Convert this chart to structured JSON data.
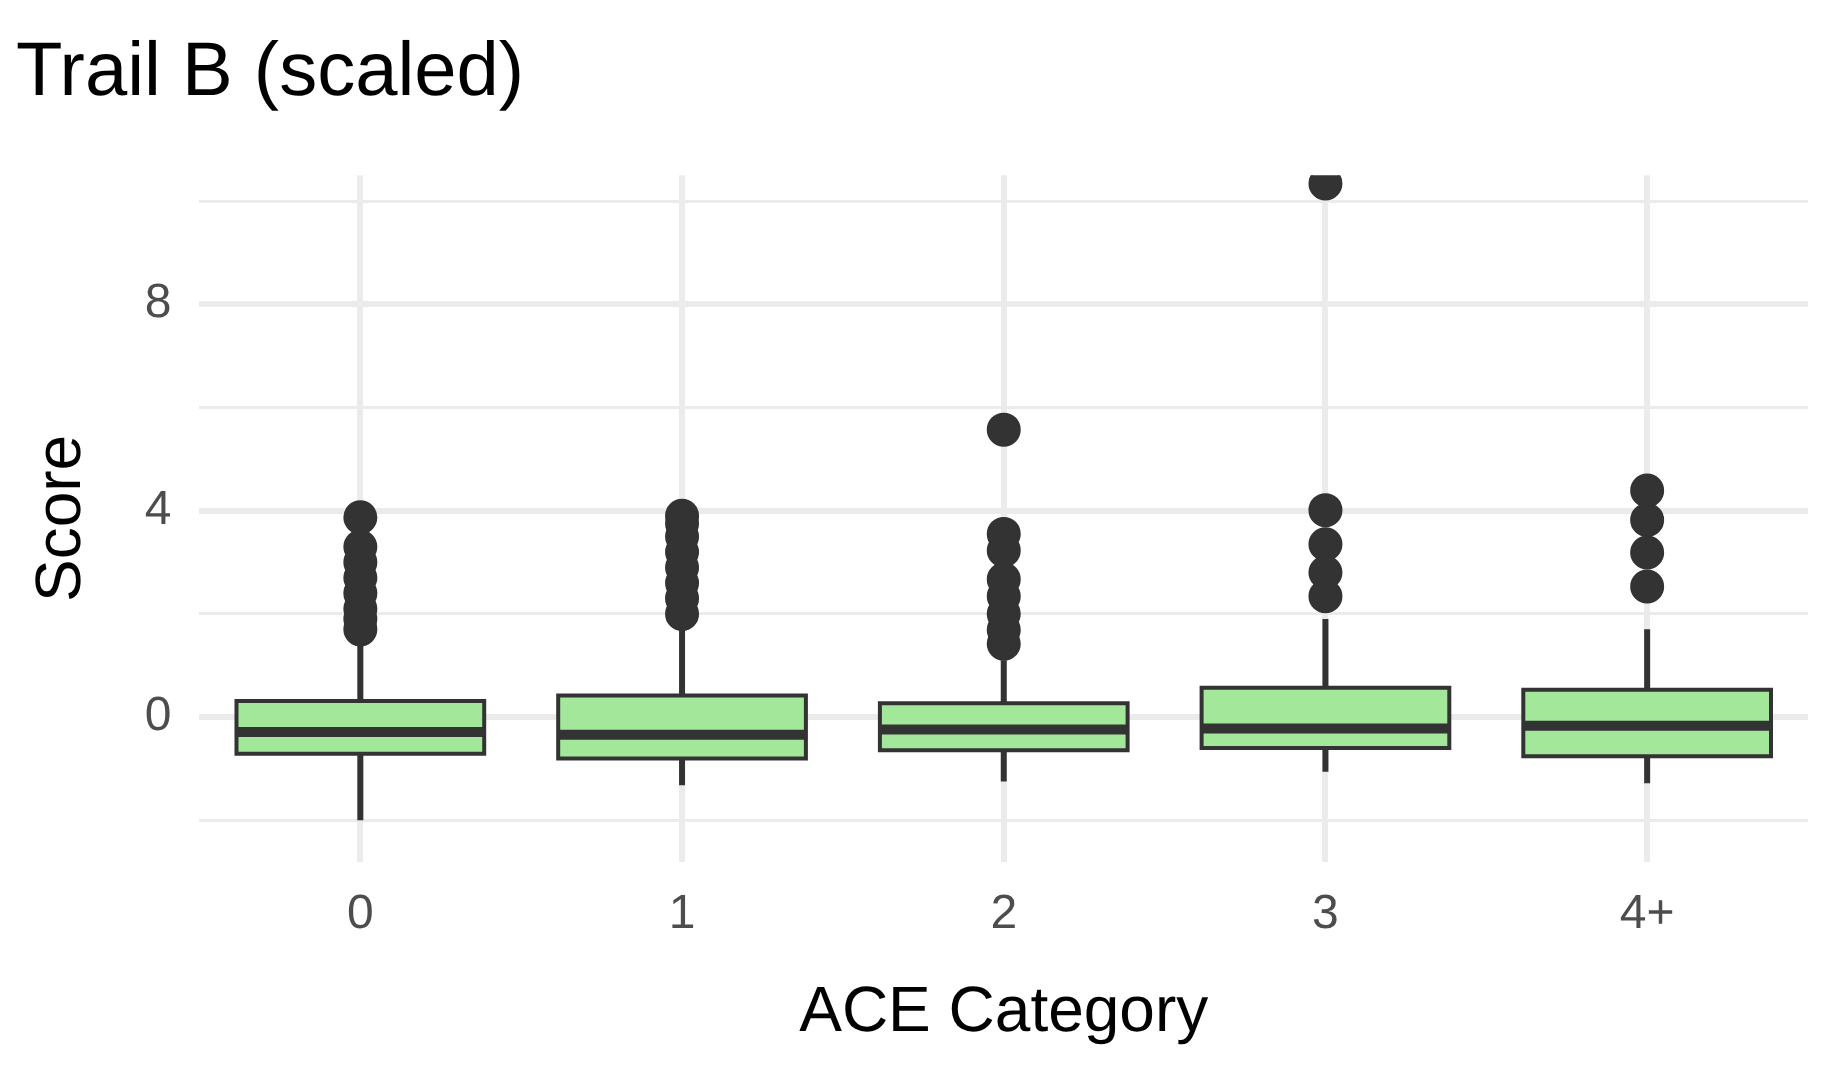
{
  "chart_data": {
    "type": "box",
    "title": "Trail B (scaled)",
    "xlabel": "ACE Category",
    "ylabel": "Score",
    "categories": [
      "0",
      "1",
      "2",
      "3",
      "4+"
    ],
    "series": [
      {
        "color": "#a3e89a",
        "boxes": [
          {
            "low": -2.0,
            "q1": -0.71,
            "median": -0.29,
            "q3": 0.31,
            "high": 1.5,
            "outliers": [
              1.7,
              1.9,
              2.1,
              2.4,
              2.7,
              3.0,
              3.3,
              3.87
            ]
          },
          {
            "low": -1.32,
            "q1": -0.8,
            "median": -0.34,
            "q3": 0.42,
            "high": 1.8,
            "outliers": [
              2.0,
              2.3,
              2.6,
              2.9,
              3.2,
              3.5,
              3.75,
              3.9
            ]
          },
          {
            "low": -1.25,
            "q1": -0.64,
            "median": -0.24,
            "q3": 0.27,
            "high": 1.1,
            "outliers": [
              1.42,
              1.69,
              2.0,
              2.34,
              2.67,
              3.23,
              3.55,
              5.57
            ]
          },
          {
            "low": -1.06,
            "q1": -0.6,
            "median": -0.22,
            "q3": 0.57,
            "high": 1.9,
            "outliers": [
              2.34,
              2.8,
              3.35,
              4.01,
              10.34
            ]
          },
          {
            "low": -1.28,
            "q1": -0.76,
            "median": -0.17,
            "q3": 0.53,
            "high": 1.7,
            "outliers": [
              2.53,
              3.19,
              3.82,
              4.39
            ]
          }
        ]
      }
    ],
    "ylim": [
      -2.8,
      10.5
    ],
    "yticks": [
      {
        "value": -2,
        "label": null
      },
      0,
      {
        "value": 2,
        "label": null
      },
      4,
      {
        "value": 6,
        "label": null
      },
      8,
      {
        "value": 10,
        "label": null
      }
    ],
    "grid": true,
    "legend": false,
    "marker": "circle"
  }
}
